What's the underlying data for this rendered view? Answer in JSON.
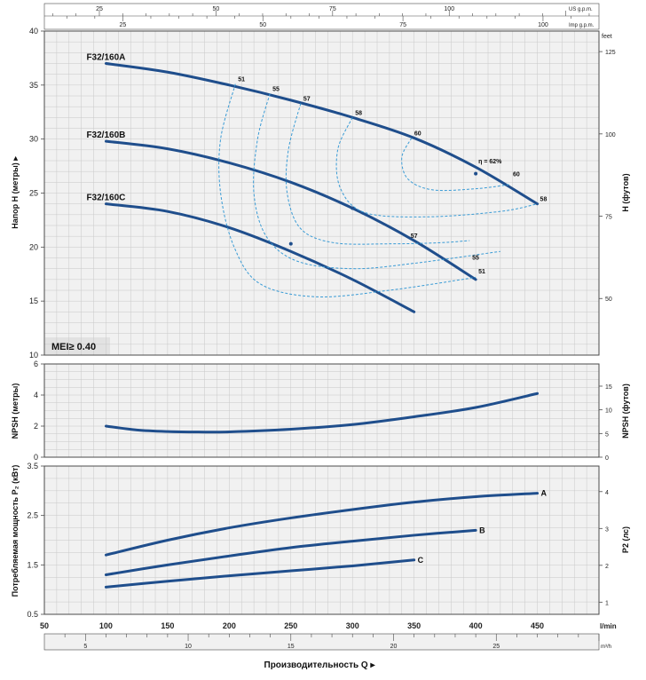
{
  "chart_data": [
    {
      "type": "line",
      "panel": "head",
      "title": "",
      "ylabel": "Напор H (метры)",
      "ylabel_right": "H (футов)",
      "ylim": [
        10,
        40
      ],
      "yticks": [
        10,
        15,
        20,
        25,
        30,
        35,
        40
      ],
      "yticks_right": [
        50,
        75,
        100,
        125
      ],
      "ylabel_right_unit": "feet",
      "mei_label": "MEI≥ 0.40",
      "series": [
        {
          "name": "F32/160A",
          "x": [
            100,
            150,
            200,
            250,
            300,
            350,
            400,
            450
          ],
          "y": [
            37,
            36.2,
            35.0,
            33.6,
            32.0,
            30.1,
            27.4,
            24.0
          ]
        },
        {
          "name": "F32/160B",
          "x": [
            100,
            150,
            200,
            250,
            300,
            350,
            400
          ],
          "y": [
            29.8,
            29.1,
            27.8,
            26.0,
            23.6,
            20.6,
            17.0
          ]
        },
        {
          "name": "F32/160C",
          "x": [
            100,
            150,
            200,
            250,
            300,
            350
          ],
          "y": [
            24.0,
            23.3,
            21.8,
            19.6,
            17.0,
            14.0
          ]
        }
      ],
      "efficiency_labels": [
        "51",
        "55",
        "57",
        "58",
        "60",
        "η = 62%",
        "60",
        "58",
        "57",
        "55",
        "51"
      ]
    },
    {
      "type": "line",
      "panel": "npsh",
      "title": "",
      "ylabel": "NPSH (метры)",
      "ylabel_right": "NPSH (футов)",
      "ylim": [
        0,
        6
      ],
      "yticks": [
        0,
        2,
        4,
        6
      ],
      "yticks_right": [
        0,
        5,
        10,
        15
      ],
      "series": [
        {
          "name": "",
          "x": [
            100,
            125,
            150,
            175,
            200,
            250,
            300,
            350,
            400,
            450
          ],
          "y": [
            2.0,
            1.75,
            1.65,
            1.62,
            1.63,
            1.8,
            2.1,
            2.6,
            3.2,
            4.1
          ]
        }
      ]
    },
    {
      "type": "line",
      "panel": "power",
      "title": "",
      "ylabel": "Потребляемая мощность P₂ (кВт)",
      "ylabel_right": "P2 (лс)",
      "ylim": [
        0.5,
        3.5
      ],
      "yticks": [
        0.5,
        1.5,
        2.5,
        3.5
      ],
      "yticks_right": [
        1,
        2,
        3,
        4
      ],
      "series": [
        {
          "name": "A",
          "x": [
            100,
            150,
            200,
            250,
            300,
            350,
            400,
            450
          ],
          "y": [
            1.7,
            2.0,
            2.25,
            2.45,
            2.62,
            2.77,
            2.88,
            2.95
          ]
        },
        {
          "name": "B",
          "x": [
            100,
            150,
            200,
            250,
            300,
            350,
            400
          ],
          "y": [
            1.3,
            1.5,
            1.68,
            1.85,
            1.98,
            2.1,
            2.2
          ]
        },
        {
          "name": "C",
          "x": [
            100,
            150,
            200,
            250,
            300,
            350
          ],
          "y": [
            1.05,
            1.17,
            1.28,
            1.38,
            1.48,
            1.6
          ]
        }
      ]
    }
  ],
  "axes": {
    "x_lmin": {
      "label": "l/min",
      "ticks": [
        50,
        100,
        150,
        200,
        250,
        300,
        350,
        400,
        450
      ],
      "xlim": [
        50,
        500
      ]
    },
    "x_m3h": {
      "label": "m³/h",
      "ticks": [
        5,
        10,
        15,
        20,
        25
      ]
    },
    "x_usgpm": {
      "label": "US g.p.m.",
      "ticks": [
        25,
        50,
        75,
        100
      ]
    },
    "x_impgpm": {
      "label": "Imp g.p.m.",
      "ticks": [
        25,
        50,
        75,
        100
      ]
    },
    "xlabel": "Производительность Q"
  },
  "colors": {
    "curve": "#1f4e8c",
    "dashed": "#3a9bd5",
    "grid": "#c8c8c8",
    "frame": "#4a4a4a",
    "panel": "#f1f1f1"
  }
}
